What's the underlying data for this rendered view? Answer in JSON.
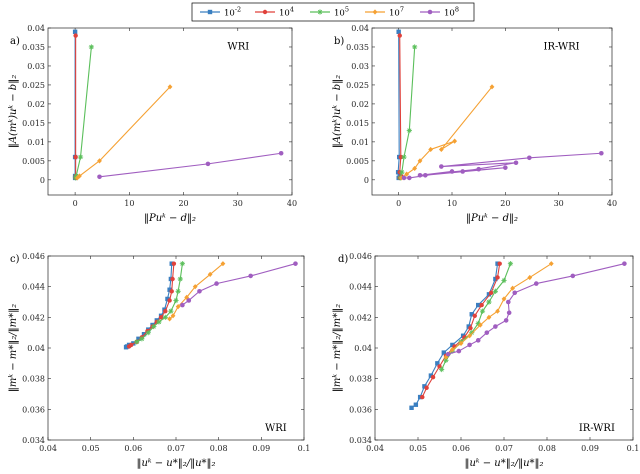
{
  "legend": [
    {
      "label": "10^{-2}",
      "color": "#3a7fc1",
      "marker": "square"
    },
    {
      "label": "10^{4}",
      "color": "#e0413b",
      "marker": "circle"
    },
    {
      "label": "10^{5}",
      "color": "#5bbf5b",
      "marker": "star"
    },
    {
      "label": "10^{7}",
      "color": "#f5a133",
      "marker": "diamond"
    },
    {
      "label": "10^{8}",
      "color": "#a05ec0",
      "marker": "dot"
    }
  ],
  "chart_data": [
    {
      "type": "line",
      "panel": "a)",
      "title": "WRI",
      "xlabel": "‖Puᵏ − d‖₂",
      "ylabel": "‖A(mᵏ)uᵏ − b‖₂",
      "xlim": [
        -5,
        40
      ],
      "ylim": [
        -0.004,
        0.04
      ],
      "xticks": [
        0,
        10,
        20,
        30,
        40
      ],
      "yticks": [
        0,
        0.005,
        0.01,
        0.015,
        0.02,
        0.025,
        0.03,
        0.035,
        0.04
      ],
      "series": [
        {
          "name": "10^{-2}",
          "points": [
            [
              0,
              0.039
            ],
            [
              0,
              0.006
            ],
            [
              0,
              0.001
            ],
            [
              0,
              0.0005
            ]
          ]
        },
        {
          "name": "10^{4}",
          "points": [
            [
              0.1,
              0.038
            ],
            [
              0.1,
              0.006
            ],
            [
              0.1,
              0.001
            ],
            [
              0.1,
              0.0005
            ]
          ]
        },
        {
          "name": "10^{5}",
          "points": [
            [
              3,
              0.035
            ],
            [
              1,
              0.006
            ],
            [
              0.2,
              0.001
            ],
            [
              0.1,
              0.0005
            ]
          ]
        },
        {
          "name": "10^{7}",
          "points": [
            [
              17.5,
              0.0245
            ],
            [
              4.5,
              0.005
            ],
            [
              0.8,
              0.001
            ],
            [
              0.4,
              0.0005
            ]
          ]
        },
        {
          "name": "10^{8}",
          "points": [
            [
              38,
              0.007
            ],
            [
              24.5,
              0.0042
            ],
            [
              4.5,
              0.0008
            ]
          ]
        }
      ]
    },
    {
      "type": "line",
      "panel": "b)",
      "title": "IR-WRI",
      "xlabel": "‖Puᵏ − d‖₂",
      "ylabel": "‖A(mᵏ)uᵏ − b‖₂",
      "xlim": [
        -5,
        40
      ],
      "ylim": [
        -0.004,
        0.04
      ],
      "xticks": [
        0,
        10,
        20,
        30,
        40
      ],
      "yticks": [
        0,
        0.005,
        0.01,
        0.015,
        0.02,
        0.025,
        0.03,
        0.035,
        0.04
      ],
      "series": [
        {
          "name": "10^{-2}",
          "points": [
            [
              0,
              0.039
            ],
            [
              0.1,
              0.006
            ],
            [
              -0.1,
              0.002
            ],
            [
              0.2,
              0.001
            ],
            [
              0,
              0.0005
            ]
          ]
        },
        {
          "name": "10^{4}",
          "points": [
            [
              0.2,
              0.038
            ],
            [
              0.4,
              0.006
            ],
            [
              0.2,
              0.002
            ],
            [
              0.5,
              0.001
            ],
            [
              0.2,
              0.0005
            ]
          ]
        },
        {
          "name": "10^{5}",
          "points": [
            [
              3,
              0.035
            ],
            [
              2,
              0.013
            ],
            [
              1,
              0.006
            ],
            [
              0.6,
              0.002
            ],
            [
              0.3,
              0.0005
            ]
          ]
        },
        {
          "name": "10^{7}",
          "points": [
            [
              17.5,
              0.0245
            ],
            [
              8,
              0.008
            ],
            [
              10.5,
              0.0102
            ],
            [
              6,
              0.008
            ],
            [
              4,
              0.005
            ],
            [
              3,
              0.003
            ],
            [
              1.5,
              0.0015
            ],
            [
              0.5,
              0.0005
            ]
          ]
        },
        {
          "name": "10^{8}",
          "points": [
            [
              38,
              0.007
            ],
            [
              24.5,
              0.0058
            ],
            [
              8,
              0.0035
            ],
            [
              22,
              0.0045
            ],
            [
              12,
              0.0022
            ],
            [
              20,
              0.0032
            ],
            [
              5,
              0.0012
            ],
            [
              15,
              0.0028
            ],
            [
              4,
              0.0012
            ],
            [
              10,
              0.0022
            ],
            [
              2,
              0.0005
            ],
            [
              1,
              0.0005
            ]
          ]
        }
      ]
    },
    {
      "type": "line",
      "panel": "c)",
      "title": "WRI",
      "xlabel": "‖uᵏ − u*‖₂/‖u*‖₂",
      "ylabel": "‖mᵏ − m*‖₂/‖m*‖₂",
      "xlim": [
        0.04,
        0.1
      ],
      "ylim": [
        0.034,
        0.046
      ],
      "xticks": [
        0.04,
        0.05,
        0.06,
        0.07,
        0.08,
        0.09,
        0.1
      ],
      "yticks": [
        0.034,
        0.036,
        0.038,
        0.04,
        0.042,
        0.044,
        0.046
      ],
      "series": [
        {
          "name": "10^{-2}",
          "points": [
            [
              0.069,
              0.0455
            ],
            [
              0.0688,
              0.0445
            ],
            [
              0.0685,
              0.0438
            ],
            [
              0.068,
              0.0432
            ],
            [
              0.0673,
              0.0425
            ],
            [
              0.0665,
              0.0421
            ],
            [
              0.0655,
              0.0418
            ],
            [
              0.0645,
              0.0415
            ],
            [
              0.0635,
              0.0412
            ],
            [
              0.0625,
              0.0409
            ],
            [
              0.0612,
              0.0406
            ],
            [
              0.06,
              0.0403
            ],
            [
              0.059,
              0.0402
            ],
            [
              0.0585,
              0.0401
            ],
            [
              0.0583,
              0.04005
            ]
          ]
        },
        {
          "name": "10^{4}",
          "points": [
            [
              0.0695,
              0.0455
            ],
            [
              0.0692,
              0.0445
            ],
            [
              0.069,
              0.0437
            ],
            [
              0.0685,
              0.0431
            ],
            [
              0.0675,
              0.0424
            ],
            [
              0.0665,
              0.042
            ],
            [
              0.0655,
              0.0417
            ],
            [
              0.0645,
              0.0414
            ],
            [
              0.0633,
              0.0411
            ],
            [
              0.062,
              0.0407
            ],
            [
              0.0608,
              0.0404
            ],
            [
              0.0595,
              0.0402
            ],
            [
              0.059,
              0.0401
            ]
          ]
        },
        {
          "name": "10^{5}",
          "points": [
            [
              0.0715,
              0.0455
            ],
            [
              0.071,
              0.0445
            ],
            [
              0.0705,
              0.0437
            ],
            [
              0.07,
              0.0431
            ],
            [
              0.0688,
              0.0424
            ],
            [
              0.0675,
              0.042
            ],
            [
              0.066,
              0.0417
            ],
            [
              0.0648,
              0.0414
            ],
            [
              0.0635,
              0.041
            ],
            [
              0.062,
              0.0406
            ],
            [
              0.0608,
              0.0404
            ]
          ]
        },
        {
          "name": "10^{7}",
          "points": [
            [
              0.081,
              0.0455
            ],
            [
              0.078,
              0.0448
            ],
            [
              0.0745,
              0.044
            ],
            [
              0.0725,
              0.0433
            ],
            [
              0.0705,
              0.0427
            ],
            [
              0.0693,
              0.0421
            ],
            [
              0.0685,
              0.0419
            ]
          ]
        },
        {
          "name": "10^{8}",
          "points": [
            [
              0.098,
              0.0455
            ],
            [
              0.0875,
              0.0447
            ],
            [
              0.0795,
              0.0442
            ],
            [
              0.0755,
              0.0437
            ],
            [
              0.073,
              0.0431
            ],
            [
              0.0715,
              0.0428
            ]
          ]
        }
      ]
    },
    {
      "type": "line",
      "panel": "d)",
      "title": "IR-WRI",
      "xlabel": "‖uᵏ − u*‖₂/‖u*‖₂",
      "ylabel": "‖mᵏ − m*‖₂/‖m*‖₂",
      "xlim": [
        0.04,
        0.1
      ],
      "ylim": [
        0.034,
        0.046
      ],
      "xticks": [
        0.04,
        0.05,
        0.06,
        0.07,
        0.08,
        0.09,
        0.1
      ],
      "yticks": [
        0.034,
        0.036,
        0.038,
        0.04,
        0.042,
        0.044,
        0.046
      ],
      "series": [
        {
          "name": "10^{-2}",
          "points": [
            [
              0.0685,
              0.0455
            ],
            [
              0.068,
              0.0445
            ],
            [
              0.0665,
              0.0435
            ],
            [
              0.064,
              0.0428
            ],
            [
              0.0625,
              0.0422
            ],
            [
              0.0618,
              0.0414
            ],
            [
              0.0605,
              0.0408
            ],
            [
              0.058,
              0.0402
            ],
            [
              0.056,
              0.0397
            ],
            [
              0.0545,
              0.039
            ],
            [
              0.053,
              0.0382
            ],
            [
              0.0515,
              0.0375
            ],
            [
              0.0505,
              0.0368
            ],
            [
              0.0495,
              0.0363
            ],
            [
              0.0485,
              0.0361
            ]
          ]
        },
        {
          "name": "10^{4}",
          "points": [
            [
              0.069,
              0.0455
            ],
            [
              0.0685,
              0.0446
            ],
            [
              0.067,
              0.0436
            ],
            [
              0.0648,
              0.0428
            ],
            [
              0.0632,
              0.0421
            ],
            [
              0.0622,
              0.0413
            ],
            [
              0.0608,
              0.0407
            ],
            [
              0.0585,
              0.0401
            ],
            [
              0.0565,
              0.0395
            ],
            [
              0.055,
              0.0388
            ],
            [
              0.0535,
              0.0381
            ],
            [
              0.052,
              0.0374
            ],
            [
              0.051,
              0.0368
            ]
          ]
        },
        {
          "name": "10^{5}",
          "points": [
            [
              0.0715,
              0.0455
            ],
            [
              0.07,
              0.0444
            ],
            [
              0.068,
              0.0437
            ],
            [
              0.0665,
              0.043
            ],
            [
              0.065,
              0.0424
            ],
            [
              0.064,
              0.0416
            ],
            [
              0.0625,
              0.041
            ],
            [
              0.06,
              0.0404
            ],
            [
              0.058,
              0.0398
            ],
            [
              0.0565,
              0.0392
            ],
            [
              0.0555,
              0.0386
            ]
          ]
        },
        {
          "name": "10^{7}",
          "points": [
            [
              0.081,
              0.0455
            ],
            [
              0.076,
              0.0446
            ],
            [
              0.072,
              0.0439
            ],
            [
              0.07,
              0.0432
            ],
            [
              0.0685,
              0.0424
            ],
            [
              0.0665,
              0.042
            ],
            [
              0.0645,
              0.0415
            ],
            [
              0.062,
              0.0408
            ],
            [
              0.06,
              0.0403
            ],
            [
              0.058,
              0.0399
            ],
            [
              0.0565,
              0.0394
            ]
          ]
        },
        {
          "name": "10^{8}",
          "points": [
            [
              0.098,
              0.0455
            ],
            [
              0.086,
              0.0447
            ],
            [
              0.0775,
              0.0442
            ],
            [
              0.0725,
              0.0436
            ],
            [
              0.071,
              0.043
            ],
            [
              0.0712,
              0.0423
            ],
            [
              0.0705,
              0.0418
            ],
            [
              0.068,
              0.0414
            ],
            [
              0.066,
              0.041
            ],
            [
              0.064,
              0.0405
            ],
            [
              0.062,
              0.0402
            ],
            [
              0.0595,
              0.0398
            ],
            [
              0.057,
              0.0396
            ]
          ]
        }
      ]
    }
  ]
}
